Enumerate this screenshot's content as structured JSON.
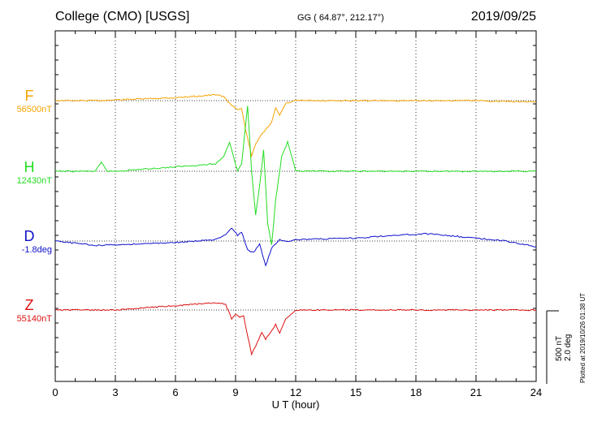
{
  "header": {
    "station": "College (CMO)  [USGS]",
    "coordinates": "GG ( 64.87°, 212.17°)",
    "date": "2019/09/25"
  },
  "plotted_at": "Plotted at 2019/10/26 01:38 UT",
  "scale": {
    "nt": "500 nT",
    "deg": "2.0 deg"
  },
  "colors": {
    "F": "#f4a300",
    "H": "#22dd22",
    "D": "#1010cc",
    "Z": "#dd1111"
  },
  "chart_data": {
    "type": "line",
    "title": "College (CMO)  [USGS]",
    "xlabel": "U T (hour)",
    "xlim": [
      0,
      24
    ],
    "xticks": [
      "0",
      "3",
      "6",
      "9",
      "12",
      "15",
      "18",
      "21",
      "24"
    ],
    "grid": true,
    "scale_bar": {
      "nT": 500,
      "deg": 2.0
    },
    "series": [
      {
        "name": "F",
        "baseline_label": "56500nT",
        "unit": "nT",
        "x": [
          0,
          2,
          4,
          6,
          7,
          8,
          8.4,
          8.7,
          8.9,
          9.1,
          9.3,
          9.5,
          9.8,
          10.0,
          10.2,
          10.5,
          10.8,
          11.0,
          11.2,
          11.5,
          12,
          15,
          18,
          21,
          24
        ],
        "y": [
          0,
          0,
          10,
          20,
          30,
          40,
          30,
          -20,
          -40,
          -60,
          -50,
          -200,
          -380,
          -300,
          -250,
          -200,
          -150,
          -50,
          -100,
          -20,
          0,
          0,
          0,
          0,
          -10
        ]
      },
      {
        "name": "H",
        "baseline_label": "12430nT",
        "unit": "nT",
        "x": [
          0,
          2,
          2.3,
          2.6,
          3,
          6,
          8.0,
          8.4,
          8.7,
          8.9,
          9.1,
          9.3,
          9.6,
          9.8,
          10.0,
          10.2,
          10.4,
          10.6,
          10.8,
          11.0,
          11.3,
          11.6,
          12,
          15,
          18,
          21,
          24
        ],
        "y": [
          0,
          0,
          60,
          0,
          0,
          30,
          50,
          100,
          200,
          100,
          0,
          50,
          450,
          0,
          -300,
          -100,
          150,
          -350,
          -500,
          -200,
          100,
          200,
          0,
          0,
          0,
          0,
          0
        ]
      },
      {
        "name": "D",
        "baseline_label": "-1.8deg",
        "unit": "deg",
        "x": [
          0,
          2,
          4,
          6,
          8,
          8.5,
          8.8,
          9.1,
          9.3,
          9.6,
          9.9,
          10.2,
          10.5,
          10.8,
          11.2,
          11.6,
          12,
          15,
          17,
          18.5,
          21,
          22.5,
          24
        ],
        "y": [
          0,
          -0.12,
          -0.08,
          -0.04,
          0.04,
          0.16,
          0.36,
          0.16,
          0.24,
          -0.24,
          -0.32,
          -0.08,
          -0.68,
          -0.2,
          0.04,
          0.0,
          0.04,
          0.08,
          0.16,
          0.2,
          0.08,
          0.0,
          -0.16
        ]
      },
      {
        "name": "Z",
        "baseline_label": "55140nT",
        "unit": "nT",
        "x": [
          0,
          3,
          5,
          6,
          7,
          8,
          8.5,
          8.8,
          9.0,
          9.2,
          9.4,
          9.6,
          9.8,
          10.0,
          10.3,
          10.5,
          10.8,
          11.0,
          11.2,
          11.5,
          12,
          15,
          18,
          21,
          24
        ],
        "y": [
          0,
          0,
          20,
          30,
          40,
          50,
          40,
          -60,
          -30,
          -50,
          -40,
          -180,
          -300,
          -250,
          -150,
          -200,
          -140,
          -100,
          -160,
          -60,
          0,
          0,
          0,
          0,
          0
        ]
      }
    ]
  }
}
